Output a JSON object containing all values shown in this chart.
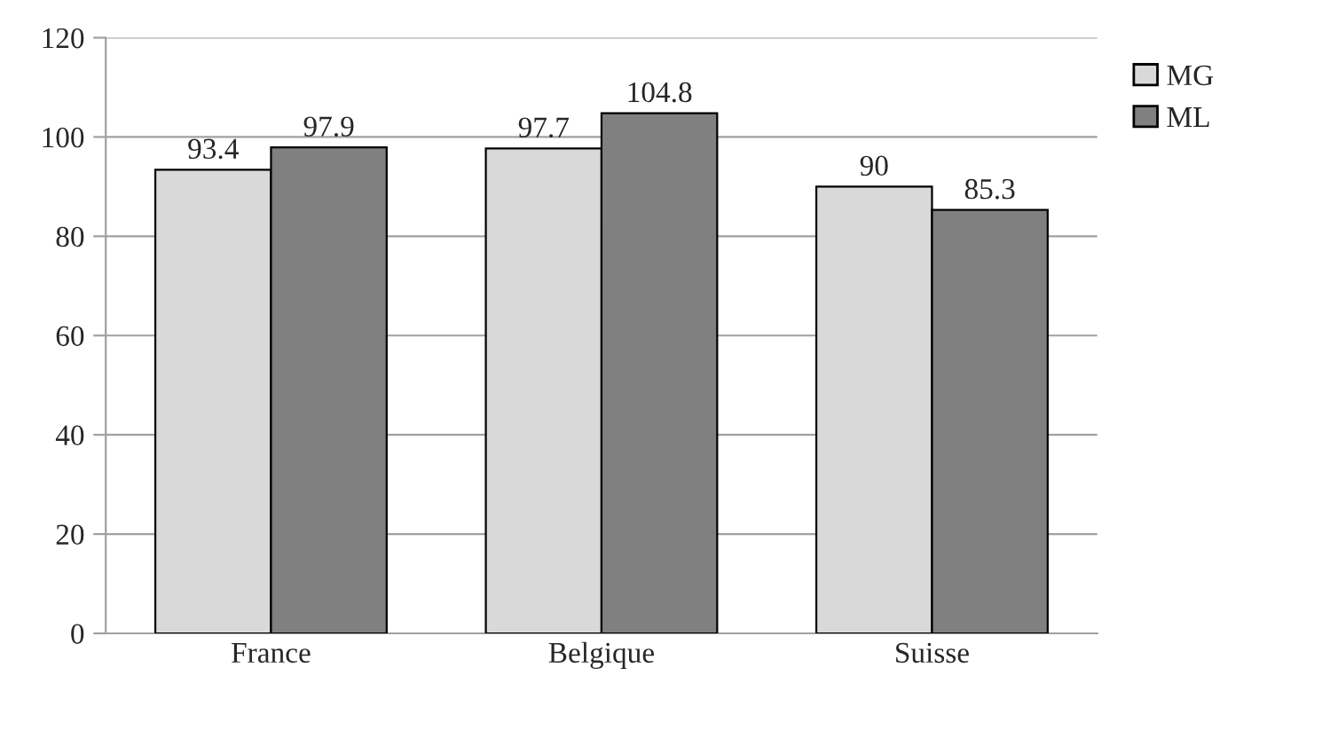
{
  "chart_data": {
    "type": "bar",
    "categories": [
      "France",
      "Belgique",
      "Suisse"
    ],
    "series": [
      {
        "name": "MG",
        "color": "#d9d9d9",
        "values": [
          93.4,
          97.7,
          90
        ]
      },
      {
        "name": "ML",
        "color": "#808080",
        "values": [
          97.9,
          104.8,
          85.3
        ]
      }
    ],
    "ylim": [
      0,
      120
    ],
    "yticks": [
      0,
      20,
      40,
      60,
      80,
      100,
      120
    ],
    "grid": "y",
    "legend": "top right",
    "data_labels": true
  }
}
